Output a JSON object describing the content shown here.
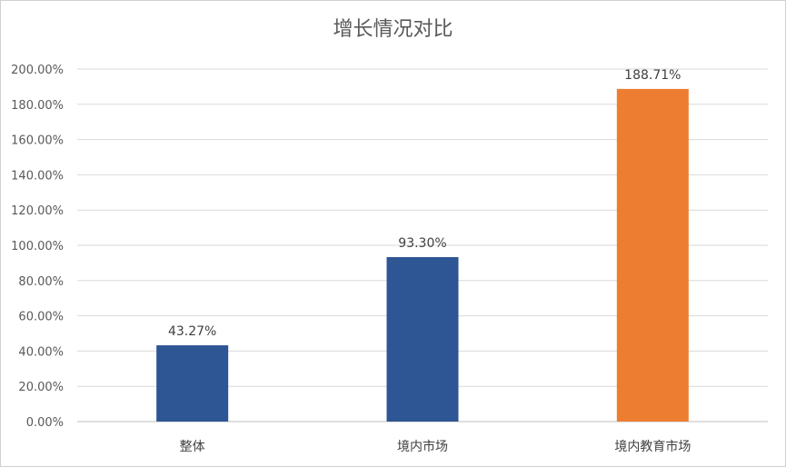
{
  "chart_data": {
    "type": "bar",
    "title": "增长情况对比",
    "categories": [
      "整体",
      "境内市场",
      "境内教育市场"
    ],
    "values": [
      43.27,
      93.3,
      188.71
    ],
    "data_labels": [
      "43.27%",
      "93.30%",
      "188.71%"
    ],
    "bar_colors": [
      "#2e5594",
      "#2e5594",
      "#ed7d31"
    ],
    "ylim": [
      0,
      200
    ],
    "y_ticks": [
      0,
      20,
      40,
      60,
      80,
      100,
      120,
      140,
      160,
      180,
      200
    ],
    "y_tick_labels": [
      "0.00%",
      "20.00%",
      "40.00%",
      "60.00%",
      "80.00%",
      "100.00%",
      "120.00%",
      "140.00%",
      "160.00%",
      "180.00%",
      "200.00%"
    ],
    "grid": true,
    "legend": "none",
    "xlabel": "",
    "ylabel": ""
  }
}
